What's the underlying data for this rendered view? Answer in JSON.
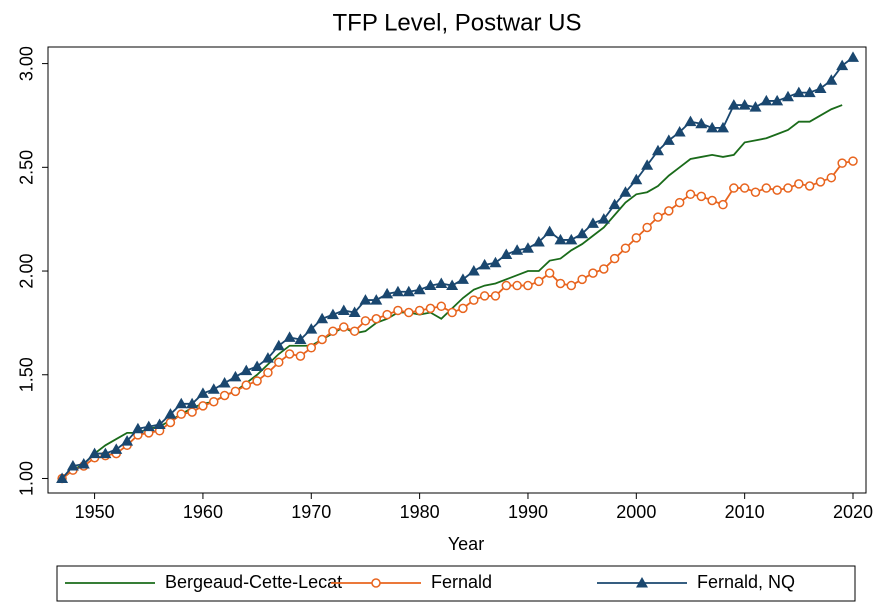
{
  "chart_data": {
    "type": "line",
    "title": "TFP Level, Postwar US",
    "x_label": "Year",
    "x": [
      1947,
      1948,
      1949,
      1950,
      1951,
      1952,
      1953,
      1954,
      1955,
      1956,
      1957,
      1958,
      1959,
      1960,
      1961,
      1962,
      1963,
      1964,
      1965,
      1966,
      1967,
      1968,
      1969,
      1970,
      1971,
      1972,
      1973,
      1974,
      1975,
      1976,
      1977,
      1978,
      1979,
      1980,
      1981,
      1982,
      1983,
      1984,
      1985,
      1986,
      1987,
      1988,
      1989,
      1990,
      1991,
      1992,
      1993,
      1994,
      1995,
      1996,
      1997,
      1998,
      1999,
      2000,
      2001,
      2002,
      2003,
      2004,
      2005,
      2006,
      2007,
      2008,
      2009,
      2010,
      2011,
      2012,
      2013,
      2014,
      2015,
      2016,
      2017,
      2018,
      2019,
      2020
    ],
    "xlim": [
      1945.7,
      2021.2
    ],
    "xticks": [
      1950,
      1960,
      1970,
      1980,
      1990,
      2000,
      2010,
      2020
    ],
    "ylim": [
      0.93,
      3.08
    ],
    "yticks": [
      {
        "value": 1,
        "label": "1.00"
      },
      {
        "value": 1.5,
        "label": "1.50"
      },
      {
        "value": 2,
        "label": "2.00"
      },
      {
        "value": 2.5,
        "label": "2.50"
      },
      {
        "value": 3,
        "label": "3.00"
      }
    ],
    "grid": false,
    "legend": "bottom",
    "series": [
      {
        "name": "Bergeaud-Cette-Lecat",
        "color": "#1a6b1a",
        "marker": "none",
        "values": [
          1.0,
          1.04,
          1.07,
          1.12,
          1.16,
          1.19,
          1.22,
          1.22,
          1.24,
          1.25,
          1.28,
          1.31,
          1.34,
          1.36,
          1.37,
          1.4,
          1.42,
          1.46,
          1.5,
          1.55,
          1.6,
          1.64,
          1.64,
          1.64,
          1.67,
          1.7,
          1.73,
          1.7,
          1.71,
          1.75,
          1.77,
          1.8,
          1.8,
          1.79,
          1.8,
          1.77,
          1.82,
          1.87,
          1.91,
          1.93,
          1.94,
          1.96,
          1.98,
          2.0,
          2.0,
          2.05,
          2.06,
          2.1,
          2.13,
          2.17,
          2.21,
          2.27,
          2.33,
          2.37,
          2.38,
          2.41,
          2.46,
          2.5,
          2.54,
          2.55,
          2.56,
          2.55,
          2.56,
          2.62,
          2.63,
          2.64,
          2.66,
          2.68,
          2.72,
          2.72,
          2.75,
          2.78,
          2.8,
          null
        ]
      },
      {
        "name": "Fernald",
        "color": "#e8641e",
        "marker": "circle",
        "values": [
          1.0,
          1.04,
          1.06,
          1.1,
          1.11,
          1.12,
          1.16,
          1.21,
          1.22,
          1.23,
          1.27,
          1.31,
          1.32,
          1.35,
          1.37,
          1.4,
          1.42,
          1.45,
          1.47,
          1.51,
          1.56,
          1.6,
          1.59,
          1.63,
          1.67,
          1.71,
          1.73,
          1.71,
          1.76,
          1.77,
          1.79,
          1.81,
          1.8,
          1.81,
          1.82,
          1.83,
          1.8,
          1.82,
          1.86,
          1.88,
          1.88,
          1.93,
          1.93,
          1.93,
          1.95,
          1.99,
          1.94,
          1.93,
          1.96,
          1.99,
          2.01,
          2.06,
          2.11,
          2.16,
          2.21,
          2.26,
          2.29,
          2.33,
          2.37,
          2.36,
          2.34,
          2.32,
          2.4,
          2.4,
          2.38,
          2.4,
          2.39,
          2.4,
          2.42,
          2.41,
          2.43,
          2.45,
          2.52,
          2.53
        ]
      },
      {
        "name": "Fernald, NQ",
        "color": "#1a476f",
        "marker": "triangle",
        "values": [
          1.0,
          1.06,
          1.07,
          1.12,
          1.12,
          1.14,
          1.18,
          1.24,
          1.25,
          1.26,
          1.31,
          1.36,
          1.36,
          1.41,
          1.43,
          1.46,
          1.49,
          1.52,
          1.54,
          1.58,
          1.64,
          1.68,
          1.67,
          1.72,
          1.77,
          1.79,
          1.81,
          1.8,
          1.86,
          1.86,
          1.89,
          1.9,
          1.9,
          1.91,
          1.93,
          1.94,
          1.93,
          1.96,
          2.0,
          2.03,
          2.04,
          2.08,
          2.1,
          2.11,
          2.14,
          2.19,
          2.15,
          2.15,
          2.18,
          2.23,
          2.25,
          2.32,
          2.38,
          2.44,
          2.51,
          2.58,
          2.63,
          2.67,
          2.72,
          2.71,
          2.69,
          2.69,
          2.8,
          2.8,
          2.79,
          2.82,
          2.82,
          2.84,
          2.86,
          2.86,
          2.88,
          2.92,
          2.99,
          3.03
        ]
      }
    ]
  }
}
